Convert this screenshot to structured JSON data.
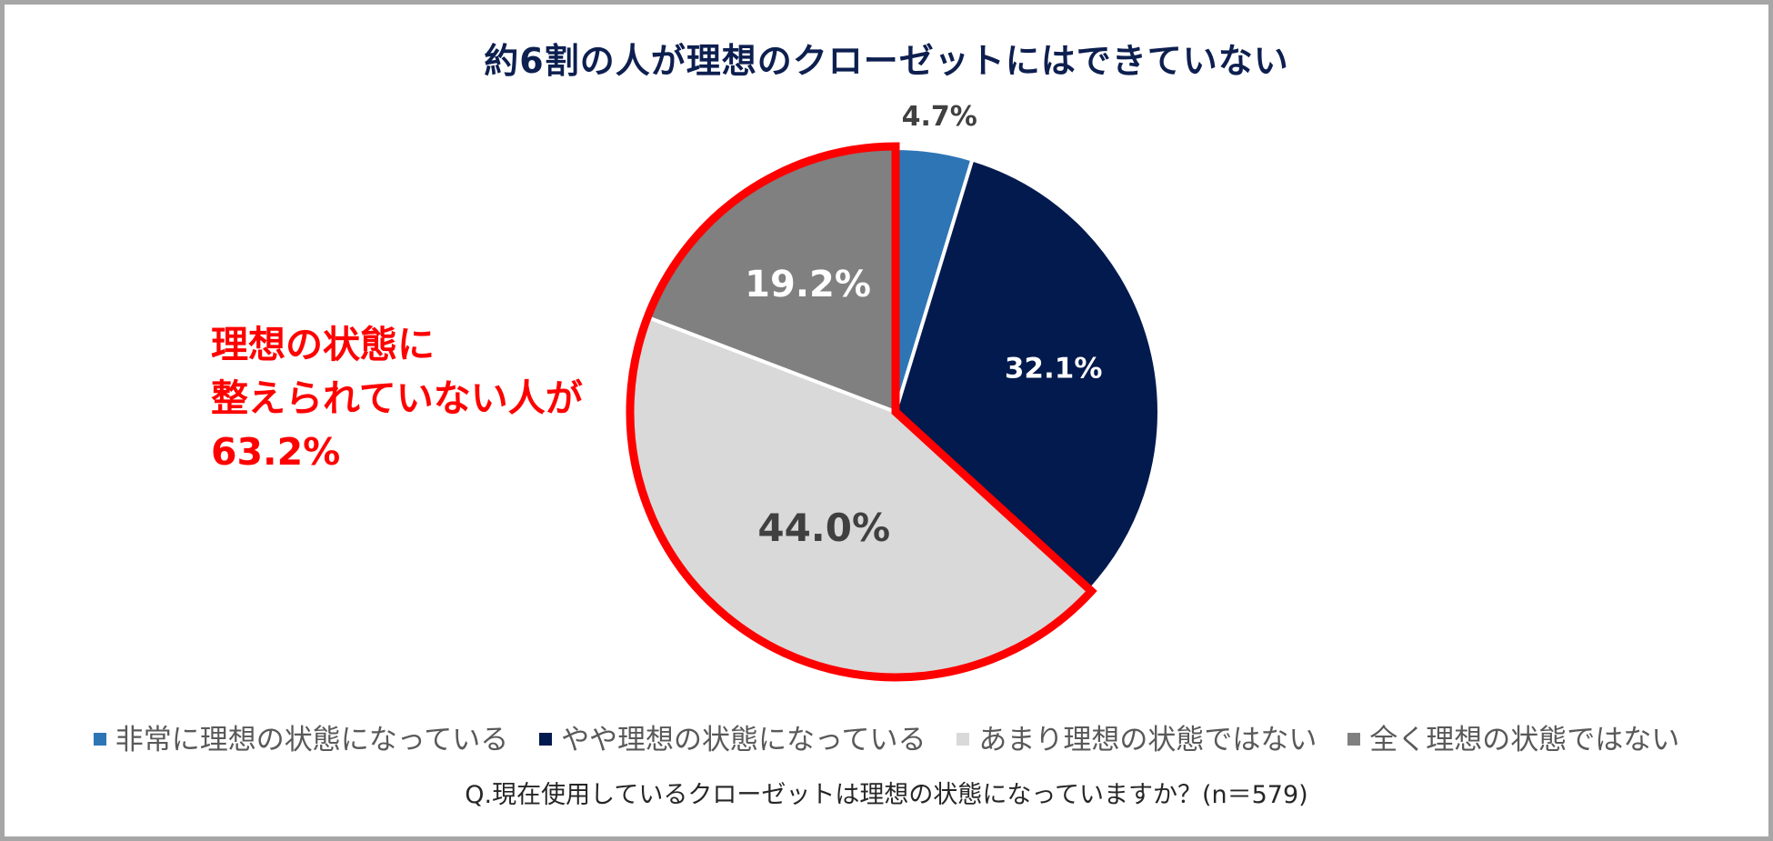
{
  "chart_data": {
    "type": "pie",
    "title": "約6割の人が理想のクローゼットにはできていない",
    "categories": [
      "非常に理想の状態になっている",
      "やや理想の状態になっている",
      "あまり理想の状態ではない",
      "全く理想の状態ではない"
    ],
    "values": [
      4.7,
      32.1,
      44.0,
      19.2
    ],
    "value_labels": [
      "4.7%",
      "32.1%",
      "44.0%",
      "19.2%"
    ],
    "colors": [
      "#2e75b6",
      "#021a4d",
      "#d9d9d9",
      "#808080"
    ],
    "label_colors": [
      "#404040",
      "#ffffff",
      "#404040",
      "#ffffff"
    ],
    "start_angle": "12 o'clock",
    "direction": "clockwise",
    "legend_position": "bottom",
    "highlight": {
      "categories": [
        "あまり理想の状態ではない",
        "全く理想の状態ではない"
      ],
      "outline_color": "#ff0000",
      "callout_lines": [
        "理想の状態に",
        "整えられていない人が",
        "63.2%"
      ]
    },
    "footnote": "Q.現在使用しているクローゼットは理想の状態になっていますか？(n＝579)"
  }
}
